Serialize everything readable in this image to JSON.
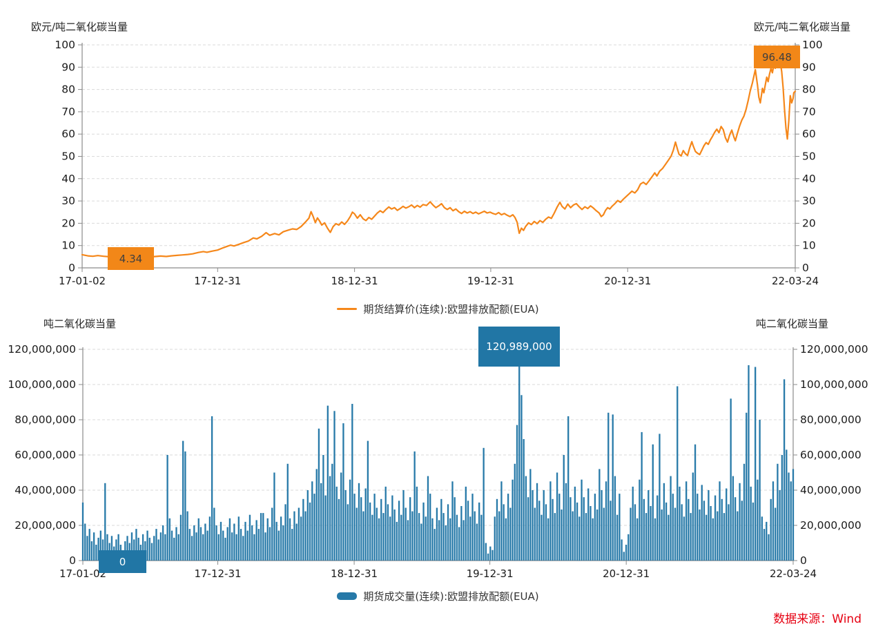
{
  "source_note": "数据来源：Wind",
  "colors": {
    "line_orange": "#F5871A",
    "annotation_orange": "#F28718",
    "bar_blue": "#2679A8",
    "annotation_blue": "#2176A5",
    "source_red": "#E60012",
    "grid": "#DADADA",
    "axis": "#8A8A8A",
    "tick_text": "#1A1A1A"
  },
  "chart_data": [
    {
      "type": "line",
      "name": "EUA futures settlement price",
      "legend_label": "期货结算价(连续):欧盟排放配额(EUA)",
      "left_axis_title": "欧元/吨二氧化碳当量",
      "right_axis_title": "欧元/吨二氧化碳当量",
      "min_label": "4.34",
      "max_label": "96.48",
      "ylim": [
        0,
        100
      ],
      "y_tick_labels": [
        "0",
        "10",
        "20",
        "30",
        "40",
        "50",
        "60",
        "70",
        "80",
        "90",
        "100"
      ],
      "x_tick_labels": [
        "17-01-02",
        "17-12-31",
        "18-12-31",
        "19-12-31",
        "20-12-31",
        "22-03-24"
      ],
      "x_tick_positions": [
        0,
        0.19,
        0.382,
        0.573,
        0.765,
        1
      ],
      "grid": "dashed-horizontal",
      "legend_position": "bottom-center",
      "points": [
        [
          0,
          5.9
        ],
        [
          0.008,
          5.4
        ],
        [
          0.015,
          5.2
        ],
        [
          0.022,
          5.5
        ],
        [
          0.03,
          5.2
        ],
        [
          0.038,
          5.0
        ],
        [
          0.045,
          4.8
        ],
        [
          0.052,
          4.9
        ],
        [
          0.058,
          4.6
        ],
        [
          0.064,
          4.5
        ],
        [
          0.068,
          4.34
        ],
        [
          0.073,
          4.6
        ],
        [
          0.08,
          4.8
        ],
        [
          0.088,
          5.0
        ],
        [
          0.095,
          4.9
        ],
        [
          0.103,
          5.1
        ],
        [
          0.11,
          5.3
        ],
        [
          0.118,
          5.1
        ],
        [
          0.125,
          5.4
        ],
        [
          0.133,
          5.6
        ],
        [
          0.14,
          5.8
        ],
        [
          0.148,
          6.0
        ],
        [
          0.155,
          6.3
        ],
        [
          0.163,
          6.9
        ],
        [
          0.17,
          7.3
        ],
        [
          0.175,
          7.0
        ],
        [
          0.182,
          7.5
        ],
        [
          0.19,
          8.0
        ],
        [
          0.196,
          8.8
        ],
        [
          0.202,
          9.5
        ],
        [
          0.208,
          10.2
        ],
        [
          0.213,
          9.8
        ],
        [
          0.22,
          10.6
        ],
        [
          0.227,
          11.4
        ],
        [
          0.233,
          12.0
        ],
        [
          0.24,
          13.4
        ],
        [
          0.245,
          13.0
        ],
        [
          0.252,
          14.2
        ],
        [
          0.258,
          15.8
        ],
        [
          0.263,
          14.6
        ],
        [
          0.27,
          15.4
        ],
        [
          0.276,
          14.8
        ],
        [
          0.282,
          16.2
        ],
        [
          0.288,
          16.8
        ],
        [
          0.295,
          17.5
        ],
        [
          0.301,
          17.2
        ],
        [
          0.307,
          18.5
        ],
        [
          0.313,
          20.5
        ],
        [
          0.318,
          22.3
        ],
        [
          0.321,
          25.2
        ],
        [
          0.324,
          23.0
        ],
        [
          0.327,
          20.3
        ],
        [
          0.33,
          22.4
        ],
        [
          0.333,
          21.0
        ],
        [
          0.336,
          19.2
        ],
        [
          0.34,
          20.2
        ],
        [
          0.344,
          17.8
        ],
        [
          0.348,
          15.9
        ],
        [
          0.352,
          18.5
        ],
        [
          0.356,
          19.8
        ],
        [
          0.36,
          19.2
        ],
        [
          0.364,
          20.6
        ],
        [
          0.368,
          19.5
        ],
        [
          0.372,
          21.0
        ],
        [
          0.376,
          23.0
        ],
        [
          0.379,
          25.0
        ],
        [
          0.382,
          24.2
        ],
        [
          0.386,
          22.3
        ],
        [
          0.39,
          23.8
        ],
        [
          0.394,
          22.0
        ],
        [
          0.398,
          21.2
        ],
        [
          0.402,
          22.6
        ],
        [
          0.406,
          21.8
        ],
        [
          0.41,
          23.2
        ],
        [
          0.414,
          24.6
        ],
        [
          0.418,
          25.6
        ],
        [
          0.422,
          24.8
        ],
        [
          0.426,
          26.2
        ],
        [
          0.43,
          27.3
        ],
        [
          0.434,
          26.4
        ],
        [
          0.438,
          27.0
        ],
        [
          0.442,
          25.8
        ],
        [
          0.446,
          26.6
        ],
        [
          0.45,
          27.6
        ],
        [
          0.454,
          26.8
        ],
        [
          0.458,
          27.4
        ],
        [
          0.462,
          28.2
        ],
        [
          0.466,
          27.0
        ],
        [
          0.47,
          28.0
        ],
        [
          0.474,
          27.2
        ],
        [
          0.478,
          28.4
        ],
        [
          0.483,
          28.0
        ],
        [
          0.488,
          29.6
        ],
        [
          0.492,
          28.2
        ],
        [
          0.496,
          27.0
        ],
        [
          0.5,
          27.8
        ],
        [
          0.504,
          28.8
        ],
        [
          0.508,
          27.0
        ],
        [
          0.512,
          26.2
        ],
        [
          0.516,
          27.0
        ],
        [
          0.52,
          25.6
        ],
        [
          0.524,
          26.4
        ],
        [
          0.528,
          25.2
        ],
        [
          0.532,
          24.4
        ],
        [
          0.536,
          25.4
        ],
        [
          0.54,
          24.6
        ],
        [
          0.544,
          25.2
        ],
        [
          0.548,
          24.4
        ],
        [
          0.552,
          25.0
        ],
        [
          0.556,
          24.2
        ],
        [
          0.56,
          24.8
        ],
        [
          0.564,
          25.4
        ],
        [
          0.568,
          24.6
        ],
        [
          0.572,
          25.0
        ],
        [
          0.576,
          24.4
        ],
        [
          0.58,
          24.0
        ],
        [
          0.584,
          24.8
        ],
        [
          0.588,
          23.8
        ],
        [
          0.592,
          24.4
        ],
        [
          0.596,
          23.6
        ],
        [
          0.6,
          23.0
        ],
        [
          0.604,
          23.8
        ],
        [
          0.607,
          22.6
        ],
        [
          0.61,
          20.5
        ],
        [
          0.613,
          15.5
        ],
        [
          0.616,
          17.8
        ],
        [
          0.619,
          16.8
        ],
        [
          0.622,
          18.6
        ],
        [
          0.626,
          20.2
        ],
        [
          0.63,
          19.4
        ],
        [
          0.634,
          20.8
        ],
        [
          0.638,
          19.8
        ],
        [
          0.642,
          21.2
        ],
        [
          0.646,
          20.4
        ],
        [
          0.65,
          21.8
        ],
        [
          0.654,
          22.8
        ],
        [
          0.658,
          22.2
        ],
        [
          0.662,
          24.5
        ],
        [
          0.666,
          27.2
        ],
        [
          0.67,
          29.4
        ],
        [
          0.673,
          27.6
        ],
        [
          0.677,
          26.4
        ],
        [
          0.681,
          28.6
        ],
        [
          0.685,
          27.0
        ],
        [
          0.689,
          28.2
        ],
        [
          0.693,
          28.8
        ],
        [
          0.697,
          27.4
        ],
        [
          0.701,
          26.2
        ],
        [
          0.705,
          27.4
        ],
        [
          0.709,
          26.6
        ],
        [
          0.713,
          27.8
        ],
        [
          0.717,
          26.8
        ],
        [
          0.721,
          25.6
        ],
        [
          0.725,
          24.6
        ],
        [
          0.728,
          23.0
        ],
        [
          0.731,
          23.8
        ],
        [
          0.734,
          25.8
        ],
        [
          0.737,
          27.0
        ],
        [
          0.74,
          26.4
        ],
        [
          0.743,
          27.6
        ],
        [
          0.747,
          28.8
        ],
        [
          0.751,
          30.2
        ],
        [
          0.755,
          29.4
        ],
        [
          0.759,
          30.8
        ],
        [
          0.763,
          32.0
        ],
        [
          0.767,
          33.2
        ],
        [
          0.771,
          34.4
        ],
        [
          0.775,
          33.6
        ],
        [
          0.779,
          35.0
        ],
        [
          0.783,
          37.6
        ],
        [
          0.787,
          38.4
        ],
        [
          0.791,
          37.4
        ],
        [
          0.795,
          39.0
        ],
        [
          0.799,
          40.8
        ],
        [
          0.803,
          42.6
        ],
        [
          0.806,
          41.2
        ],
        [
          0.81,
          43.4
        ],
        [
          0.814,
          44.6
        ],
        [
          0.818,
          46.4
        ],
        [
          0.822,
          48.2
        ],
        [
          0.826,
          50.2
        ],
        [
          0.829,
          52.8
        ],
        [
          0.832,
          56.4
        ],
        [
          0.835,
          53.0
        ],
        [
          0.837,
          51.0
        ],
        [
          0.84,
          50.2
        ],
        [
          0.843,
          52.6
        ],
        [
          0.846,
          51.2
        ],
        [
          0.849,
          50.4
        ],
        [
          0.852,
          53.8
        ],
        [
          0.855,
          56.6
        ],
        [
          0.857,
          54.6
        ],
        [
          0.86,
          52.2
        ],
        [
          0.863,
          51.4
        ],
        [
          0.866,
          50.8
        ],
        [
          0.869,
          52.8
        ],
        [
          0.872,
          54.8
        ],
        [
          0.875,
          56.2
        ],
        [
          0.878,
          55.4
        ],
        [
          0.881,
          57.4
        ],
        [
          0.884,
          59.0
        ],
        [
          0.887,
          60.8
        ],
        [
          0.89,
          62.2
        ],
        [
          0.893,
          60.6
        ],
        [
          0.896,
          63.4
        ],
        [
          0.899,
          62.0
        ],
        [
          0.902,
          58.4
        ],
        [
          0.905,
          56.4
        ],
        [
          0.908,
          59.6
        ],
        [
          0.911,
          61.8
        ],
        [
          0.914,
          58.6
        ],
        [
          0.916,
          57.0
        ],
        [
          0.919,
          60.4
        ],
        [
          0.922,
          63.6
        ],
        [
          0.925,
          66.2
        ],
        [
          0.928,
          68.0
        ],
        [
          0.931,
          71.0
        ],
        [
          0.934,
          75.0
        ],
        [
          0.937,
          79.5
        ],
        [
          0.94,
          83.0
        ],
        [
          0.944,
          88.9
        ],
        [
          0.947,
          82.0
        ],
        [
          0.949,
          76.5
        ],
        [
          0.951,
          74.0
        ],
        [
          0.954,
          80.5
        ],
        [
          0.956,
          78.5
        ],
        [
          0.958,
          82.0
        ],
        [
          0.96,
          85.5
        ],
        [
          0.962,
          83.5
        ],
        [
          0.964,
          87.0
        ],
        [
          0.966,
          89.5
        ],
        [
          0.968,
          87.5
        ],
        [
          0.97,
          91.0
        ],
        [
          0.972,
          89.5
        ],
        [
          0.974,
          93.0
        ],
        [
          0.975,
          95.0
        ],
        [
          0.977,
          96.48
        ],
        [
          0.979,
          92.5
        ],
        [
          0.981,
          88.0
        ],
        [
          0.983,
          81.0
        ],
        [
          0.985,
          71.0
        ],
        [
          0.987,
          62.5
        ],
        [
          0.989,
          57.8
        ],
        [
          0.991,
          66.0
        ],
        [
          0.993,
          77.2
        ],
        [
          0.995,
          74.0
        ],
        [
          0.997,
          76.0
        ],
        [
          0.998,
          78.5
        ],
        [
          1,
          79.2
        ]
      ]
    },
    {
      "type": "bar",
      "name": "EUA futures volume",
      "legend_label": "期货成交量(连续):欧盟排放配额(EUA)",
      "left_axis_title": "吨二氧化碳当量",
      "right_axis_title": "吨二氧化碳当量",
      "min_label": "0",
      "max_label": "120,989,000",
      "max_value": 120989000,
      "ylim": [
        0,
        120000000
      ],
      "unit_multiplier": 1000000,
      "y_tick_labels": [
        "0",
        "20,000,000",
        "40,000,000",
        "60,000,000",
        "80,000,000",
        "100,000,000",
        "120,000,000"
      ],
      "x_tick_labels": [
        "17-01-02",
        "17-12-31",
        "18-12-31",
        "19-12-31",
        "20-12-31",
        "22-03-24"
      ],
      "x_tick_positions": [
        0,
        0.19,
        0.382,
        0.573,
        0.765,
        1
      ],
      "grid": "dashed-horizontal",
      "legend_position": "bottom-center",
      "values_millions": [
        33,
        21,
        14,
        18,
        11,
        16,
        9,
        13,
        17,
        12,
        44,
        15,
        10,
        14,
        8,
        12,
        15,
        9,
        0,
        11,
        14,
        10,
        16,
        12,
        18,
        13,
        9,
        15,
        11,
        17,
        13,
        10,
        14,
        18,
        12,
        16,
        20,
        15,
        60,
        24,
        17,
        13,
        19,
        15,
        26,
        68,
        62,
        28,
        18,
        14,
        20,
        16,
        24,
        19,
        15,
        21,
        17,
        25,
        82,
        30,
        20,
        15,
        22,
        17,
        13,
        19,
        24,
        16,
        21,
        15,
        25,
        18,
        14,
        22,
        17,
        26,
        20,
        15,
        23,
        18,
        27,
        27,
        16,
        24,
        19,
        30,
        50,
        22,
        17,
        25,
        20,
        32,
        55,
        24,
        18,
        28,
        21,
        30,
        25,
        35,
        28,
        40,
        33,
        45,
        38,
        52,
        75,
        44,
        60,
        37,
        88,
        48,
        55,
        85,
        42,
        35,
        50,
        78,
        40,
        32,
        46,
        89,
        38,
        30,
        44,
        36,
        28,
        41,
        68,
        33,
        26,
        38,
        30,
        24,
        35,
        27,
        42,
        32,
        25,
        37,
        29,
        22,
        34,
        26,
        40,
        30,
        23,
        36,
        28,
        62,
        42,
        27,
        21,
        33,
        25,
        48,
        38,
        24,
        18,
        30,
        23,
        35,
        27,
        20,
        32,
        24,
        45,
        36,
        26,
        19,
        31,
        23,
        42,
        34,
        25,
        38,
        28,
        21,
        33,
        26,
        64,
        10,
        4,
        8,
        6,
        25,
        35,
        28,
        45,
        32,
        24,
        38,
        30,
        46,
        55,
        77,
        121,
        94,
        69,
        48,
        36,
        52,
        40,
        30,
        44,
        34,
        26,
        40,
        32,
        24,
        45,
        35,
        27,
        50,
        38,
        29,
        60,
        44,
        82,
        36,
        28,
        42,
        33,
        25,
        46,
        36,
        27,
        41,
        31,
        24,
        38,
        29,
        52,
        40,
        30,
        45,
        84,
        34,
        83,
        48,
        26,
        38,
        12,
        5,
        9,
        15,
        30,
        42,
        32,
        24,
        46,
        73,
        35,
        27,
        40,
        31,
        66,
        24,
        37,
        72,
        29,
        44,
        33,
        26,
        48,
        38,
        30,
        99,
        42,
        32,
        25,
        45,
        35,
        27,
        50,
        66,
        38,
        29,
        43,
        34,
        26,
        40,
        31,
        24,
        37,
        28,
        45,
        35,
        27,
        41,
        32,
        92,
        48,
        36,
        28,
        44,
        34,
        55,
        84,
        111,
        42,
        33,
        110,
        46,
        80,
        25,
        18,
        22,
        15,
        35,
        45,
        30,
        55,
        40,
        60,
        103,
        63,
        50,
        45,
        52
      ]
    }
  ]
}
